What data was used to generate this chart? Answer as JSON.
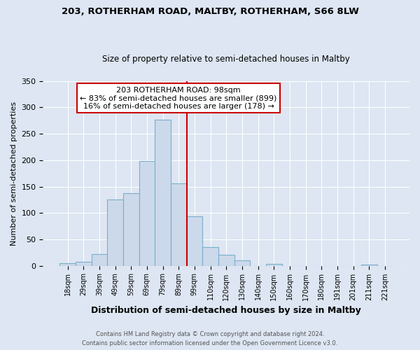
{
  "title1": "203, ROTHERHAM ROAD, MALTBY, ROTHERHAM, S66 8LW",
  "title2": "Size of property relative to semi-detached houses in Maltby",
  "xlabel": "Distribution of semi-detached houses by size in Maltby",
  "ylabel": "Number of semi-detached properties",
  "bar_labels": [
    "18sqm",
    "29sqm",
    "39sqm",
    "49sqm",
    "59sqm",
    "69sqm",
    "79sqm",
    "89sqm",
    "99sqm",
    "110sqm",
    "120sqm",
    "130sqm",
    "140sqm",
    "150sqm",
    "160sqm",
    "170sqm",
    "180sqm",
    "191sqm",
    "201sqm",
    "211sqm",
    "221sqm"
  ],
  "bar_heights": [
    5,
    8,
    22,
    125,
    138,
    198,
    277,
    156,
    93,
    35,
    21,
    10,
    0,
    3,
    0,
    0,
    0,
    0,
    0,
    2,
    0
  ],
  "bar_color": "#ccd9ea",
  "bar_edge_color": "#7aaecb",
  "red_line_color": "#cc0000",
  "annotation_title": "203 ROTHERHAM ROAD: 98sqm",
  "annotation_line1": "← 83% of semi-detached houses are smaller (899)",
  "annotation_line2": "16% of semi-detached houses are larger (178) →",
  "annotation_box_color": "#cc0000",
  "ylim": [
    0,
    350
  ],
  "yticks": [
    0,
    50,
    100,
    150,
    200,
    250,
    300,
    350
  ],
  "footer1": "Contains HM Land Registry data © Crown copyright and database right 2024.",
  "footer2": "Contains public sector information licensed under the Open Government Licence v3.0.",
  "bg_color": "#dde6f2",
  "plot_bg_color": "#dde6f2"
}
